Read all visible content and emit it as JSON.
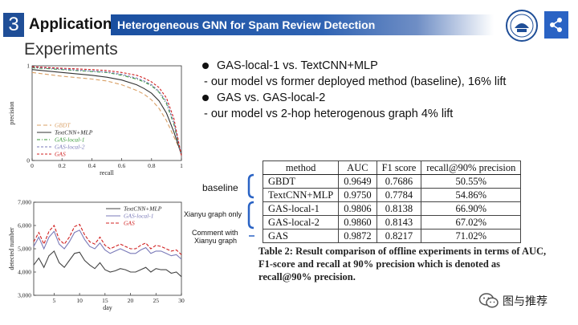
{
  "header": {
    "section_number": "3",
    "section_name": "Application",
    "title": "Heterogeneous GNN for Spam Review Detection"
  },
  "page_heading": "Experiments",
  "bullets": [
    {
      "main": "GAS-local-1 vs. TextCNN+MLP",
      "sub": "- our model vs former deployed method (baseline), 16% lift"
    },
    {
      "main": "GAS vs. GAS-local-2",
      "sub": "- our model vs 2-hop heterogenous graph 4% lift"
    }
  ],
  "annotations": {
    "baseline": "baseline",
    "xianyu_graph_only": "Xianyu graph only",
    "comment_line1": "Comment with",
    "comment_line2": "Xianyu graph"
  },
  "results_table": {
    "headers": [
      "method",
      "AUC",
      "F1 score",
      "recall@90% precision"
    ],
    "rows": [
      [
        "GBDT",
        "0.9649",
        "0.7686",
        "50.55%"
      ],
      [
        "TextCNN+MLP",
        "0.9750",
        "0.7784",
        "54.86%"
      ],
      [
        "GAS-local-1",
        "0.9806",
        "0.8138",
        "66.90%"
      ],
      [
        "GAS-local-2",
        "0.9860",
        "0.8143",
        "67.02%"
      ],
      [
        "GAS",
        "0.9872",
        "0.8217",
        "71.02%"
      ]
    ],
    "caption": "Table 2: Result comparison of offline experiments in terms of AUC, F1-score and recall at 90% precision which is denoted as recall@90% precision."
  },
  "brand_text": "图与推荐",
  "colors": {
    "header_blue": "#1f4e97",
    "share_blue": "#2a63c4"
  },
  "icons": [
    "share-icon",
    "university-logo",
    "wechat-icon"
  ],
  "chart_data": [
    {
      "type": "line",
      "xlabel": "recall",
      "ylabel": "precision",
      "xlim": [
        0,
        1
      ],
      "ylim": [
        0,
        1
      ],
      "x_ticks": [
        "0",
        "0.2",
        "0.4",
        "0.6",
        "0.8",
        "1"
      ],
      "y_ticks": [
        "0",
        "1"
      ],
      "legend_position": "bottom-left",
      "series": [
        {
          "name": "GBDT",
          "color": "#d9a066",
          "dash": "5,3",
          "x": [
            0,
            0.2,
            0.4,
            0.5,
            0.6,
            0.7,
            0.75,
            0.8,
            0.85,
            0.9,
            0.95,
            1.0
          ],
          "y": [
            0.93,
            0.89,
            0.86,
            0.84,
            0.8,
            0.74,
            0.7,
            0.64,
            0.55,
            0.42,
            0.25,
            0.08
          ]
        },
        {
          "name": "TextCNN+MLP",
          "color": "#333333",
          "dash": "",
          "x": [
            0,
            0.2,
            0.4,
            0.5,
            0.6,
            0.7,
            0.75,
            0.8,
            0.85,
            0.9,
            0.95,
            1.0
          ],
          "y": [
            0.96,
            0.93,
            0.9,
            0.88,
            0.85,
            0.8,
            0.76,
            0.71,
            0.63,
            0.5,
            0.3,
            0.06
          ]
        },
        {
          "name": "GAS-local-1",
          "color": "#3a9a3a",
          "dash": "4,2,1,2",
          "x": [
            0,
            0.2,
            0.4,
            0.5,
            0.6,
            0.7,
            0.75,
            0.8,
            0.85,
            0.9,
            0.95,
            1.0
          ],
          "y": [
            0.98,
            0.96,
            0.94,
            0.93,
            0.9,
            0.86,
            0.83,
            0.79,
            0.72,
            0.6,
            0.38,
            0.05
          ]
        },
        {
          "name": "GAS-local-2",
          "color": "#7a7ab8",
          "dash": "3,2",
          "x": [
            0,
            0.2,
            0.4,
            0.5,
            0.6,
            0.7,
            0.75,
            0.8,
            0.85,
            0.9,
            0.95,
            1.0
          ],
          "y": [
            0.985,
            0.965,
            0.945,
            0.935,
            0.91,
            0.87,
            0.84,
            0.8,
            0.73,
            0.62,
            0.4,
            0.05
          ]
        },
        {
          "name": "GAS",
          "color": "#d02020",
          "dash": "3,2",
          "x": [
            0,
            0.2,
            0.4,
            0.5,
            0.6,
            0.7,
            0.75,
            0.8,
            0.85,
            0.9,
            0.95,
            1.0
          ],
          "y": [
            0.99,
            0.975,
            0.96,
            0.95,
            0.93,
            0.9,
            0.87,
            0.83,
            0.77,
            0.66,
            0.44,
            0.05
          ]
        }
      ]
    },
    {
      "type": "line",
      "xlabel": "day",
      "ylabel": "detected number",
      "xlim": [
        1,
        30
      ],
      "ylim": [
        3000,
        7000
      ],
      "x_ticks": [
        "5",
        "10",
        "15",
        "20",
        "25",
        "30"
      ],
      "y_ticks": [
        "3,000",
        "4,000",
        "5,000",
        "6,000",
        "7,000"
      ],
      "legend_position": "top-right",
      "series": [
        {
          "name": "TextCNN+MLP",
          "color": "#444444",
          "dash": "",
          "x": [
            1,
            2,
            3,
            4,
            5,
            6,
            7,
            8,
            9,
            10,
            11,
            12,
            13,
            14,
            15,
            16,
            17,
            18,
            19,
            20,
            21,
            22,
            23,
            24,
            25,
            26,
            27,
            28,
            29,
            30
          ],
          "y": [
            4300,
            4600,
            4200,
            4700,
            4900,
            4400,
            4200,
            4500,
            4800,
            4850,
            4500,
            4300,
            4150,
            4400,
            4100,
            4000,
            4050,
            4150,
            4100,
            4000,
            4000,
            4100,
            4200,
            4000,
            4150,
            4100,
            4100,
            3950,
            4000,
            3800
          ]
        },
        {
          "name": "GAS-local-1",
          "color": "#7a7ab8",
          "dash": "",
          "x": [
            1,
            2,
            3,
            4,
            5,
            6,
            7,
            8,
            9,
            10,
            11,
            12,
            13,
            14,
            15,
            16,
            17,
            18,
            19,
            20,
            21,
            22,
            23,
            24,
            25,
            26,
            27,
            28,
            29,
            30
          ],
          "y": [
            5100,
            5500,
            5000,
            5500,
            5750,
            5200,
            5000,
            5300,
            5700,
            5800,
            5400,
            5100,
            5000,
            5250,
            4950,
            4800,
            4900,
            5000,
            4900,
            4800,
            4800,
            4950,
            5050,
            4800,
            4900,
            4900,
            4800,
            4700,
            4750,
            4550
          ]
        },
        {
          "name": "GAS",
          "color": "#d02020",
          "dash": "4,2",
          "x": [
            1,
            2,
            3,
            4,
            5,
            6,
            7,
            8,
            9,
            10,
            11,
            12,
            13,
            14,
            15,
            16,
            17,
            18,
            19,
            20,
            21,
            22,
            23,
            24,
            25,
            26,
            27,
            28,
            29,
            30
          ],
          "y": [
            5300,
            5700,
            5200,
            5750,
            6000,
            5400,
            5200,
            5500,
            5950,
            6050,
            5600,
            5300,
            5200,
            5500,
            5150,
            5000,
            5100,
            5200,
            5100,
            5000,
            5000,
            5150,
            5250,
            5000,
            5150,
            5100,
            5000,
            4900,
            4950,
            4750
          ]
        }
      ]
    }
  ]
}
